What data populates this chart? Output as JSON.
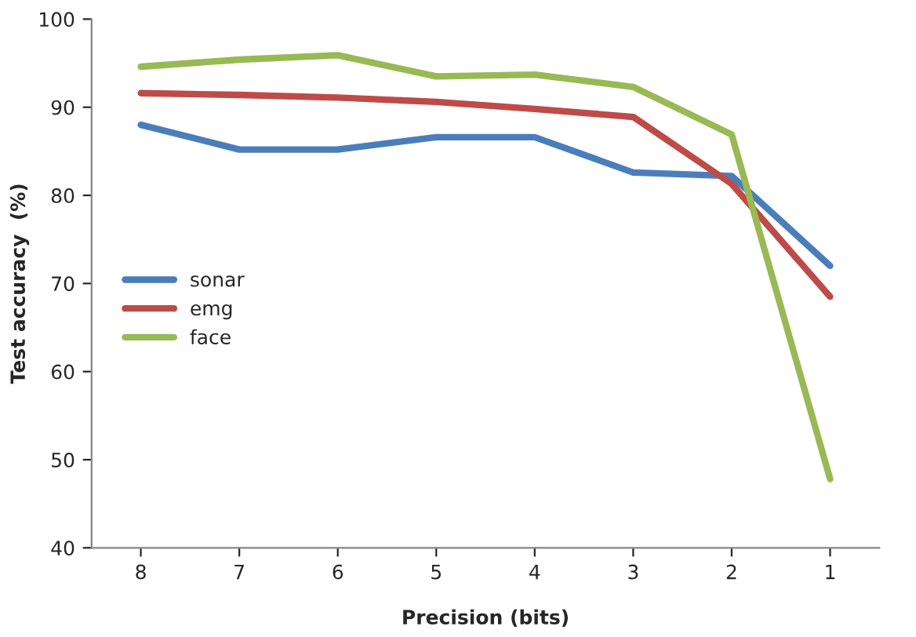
{
  "chart_data": {
    "type": "line",
    "xlabel": "Precision (bits)",
    "ylabel": "Test accuracy  (%)",
    "categories": [
      "8",
      "7",
      "6",
      "5",
      "4",
      "3",
      "2",
      "1"
    ],
    "series": [
      {
        "name": "sonar",
        "color": "#4a7ebb",
        "values": [
          88.0,
          85.2,
          85.2,
          86.6,
          86.6,
          82.6,
          82.2,
          72.0
        ]
      },
      {
        "name": "emg",
        "color": "#be4b48",
        "values": [
          91.6,
          91.4,
          91.1,
          90.6,
          89.8,
          88.9,
          81.3,
          68.5
        ]
      },
      {
        "name": "face",
        "color": "#98b954",
        "values": [
          94.6,
          95.4,
          95.9,
          93.5,
          93.7,
          92.3,
          86.9,
          47.8
        ]
      }
    ],
    "ylim": [
      40,
      100
    ],
    "yticks": [
      40,
      50,
      60,
      70,
      80,
      90,
      100
    ],
    "grid": false,
    "legend": "left",
    "marker": "none",
    "line_style": "solid"
  }
}
